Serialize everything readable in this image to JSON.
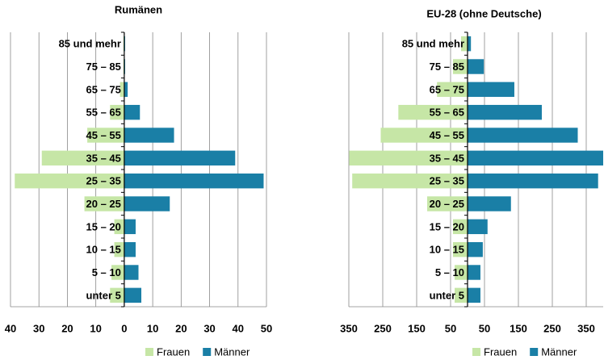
{
  "chart_data": [
    {
      "type": "bar",
      "orientation": "horizontal",
      "title": "Rumänen",
      "categories": [
        "85 und mehr",
        "75 – 85",
        "65 – 75",
        "55 – 65",
        "45 – 55",
        "35 – 45",
        "25 – 35",
        "20 – 25",
        "15 – 20",
        "10 – 15",
        "5 – 10",
        "unter 5"
      ],
      "series": [
        {
          "name": "Frauen",
          "color": "#c6e6a6",
          "values": [
            -0.3,
            -0.3,
            -1.5,
            -5,
            -13,
            -29,
            -38.5,
            -14,
            -3.5,
            -3.5,
            -4.5,
            -5
          ]
        },
        {
          "name": "Männer",
          "color": "#1a7fa6",
          "values": [
            0.3,
            0.3,
            1.2,
            5.5,
            17.5,
            39,
            49,
            16,
            4,
            4,
            5,
            6
          ]
        }
      ],
      "xlim": [
        -40,
        50
      ],
      "xticks": [
        {
          "value": -40,
          "label": "40"
        },
        {
          "value": -30,
          "label": "30"
        },
        {
          "value": -20,
          "label": "20"
        },
        {
          "value": -10,
          "label": "10"
        },
        0,
        10,
        20,
        30,
        40,
        50
      ],
      "grid": true,
      "legend": "bottom"
    },
    {
      "type": "bar",
      "orientation": "horizontal",
      "title": "EU-28 (ohne Deutsche)",
      "categories": [
        "85 und mehr",
        "75 – 85",
        "65 – 75",
        "55 – 65",
        "45 – 55",
        "35 – 45",
        "25 – 35",
        "20 – 25",
        "15 – 20",
        "10 – 15",
        "5 – 10",
        "unter 5"
      ],
      "series": [
        {
          "name": "Frauen",
          "color": "#c6e6a6",
          "values": [
            -19,
            -43,
            -90,
            -204,
            -256,
            -349,
            -340,
            -119,
            -43,
            -43,
            -38,
            -38
          ]
        },
        {
          "name": "Männer",
          "color": "#1a7fa6",
          "values": [
            10,
            48,
            138,
            219,
            325,
            400,
            385,
            128,
            59,
            45,
            38,
            38
          ]
        }
      ],
      "xlim": [
        -350,
        400
      ],
      "xticks": [
        {
          "value": -350,
          "label": "350"
        },
        {
          "value": -250,
          "label": "250"
        },
        {
          "value": -150,
          "label": "150"
        },
        {
          "value": -50,
          "label": "50"
        },
        50,
        150,
        250,
        350
      ],
      "grid": true,
      "legend": "bottom"
    }
  ]
}
